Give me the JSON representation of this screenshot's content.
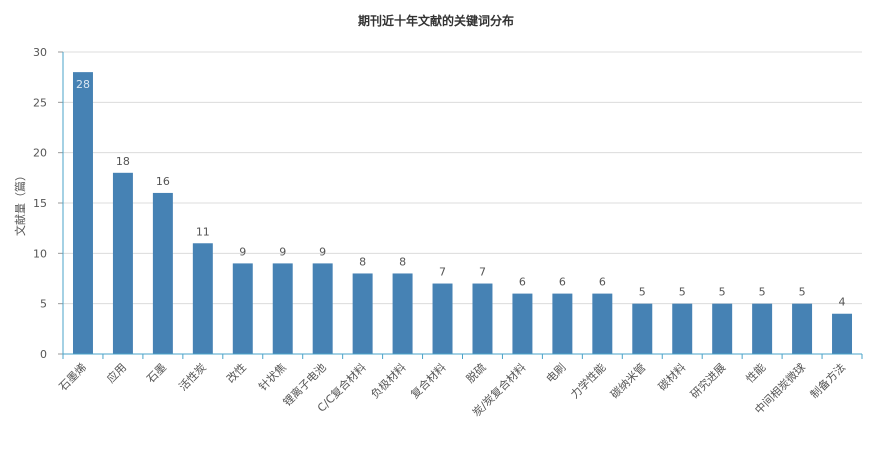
{
  "chart_data": {
    "type": "bar",
    "title": "期刊近十年文献的关键词分布",
    "xlabel": "",
    "ylabel": "文献量（篇）",
    "ylim": [
      0,
      30
    ],
    "yticks": [
      0,
      5,
      10,
      15,
      20,
      25,
      30
    ],
    "grid": true,
    "legend": "none",
    "categories": [
      "石墨烯",
      "应用",
      "石墨",
      "活性炭",
      "改性",
      "针状焦",
      "锂离子电池",
      "C/C复合材料",
      "负极材料",
      "复合材料",
      "脱硫",
      "炭/炭复合材料",
      "电刷",
      "力学性能",
      "碳纳米管",
      "碳材料",
      "研究进展",
      "性能",
      "中间相炭微球",
      "制备方法"
    ],
    "values": [
      28,
      18,
      16,
      11,
      9,
      9,
      9,
      8,
      8,
      7,
      7,
      6,
      6,
      6,
      5,
      5,
      5,
      5,
      5,
      4
    ],
    "bar_color": "#4682b4",
    "axis_color": "#4aa3c8"
  }
}
